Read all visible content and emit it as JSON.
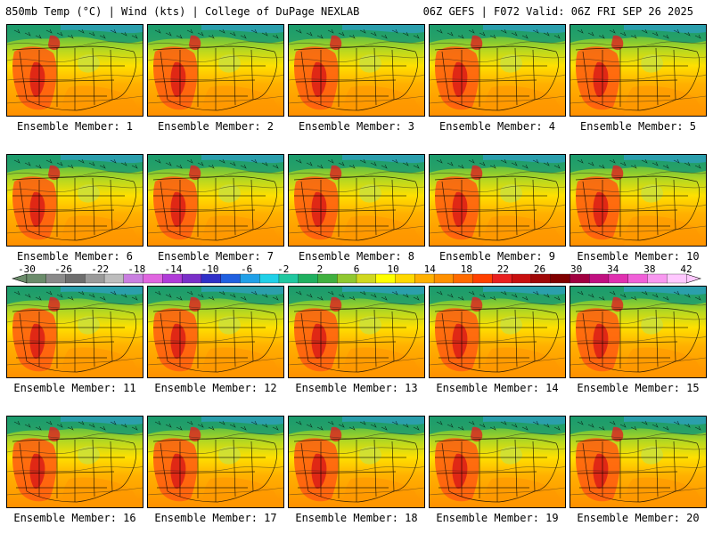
{
  "header": {
    "left_title": "850mb Temp (°C) | Wind (kts) | College of DuPage NEXLAB",
    "right_title": "06Z GEFS | F072 Valid: 06Z FRI SEP 26 2025"
  },
  "members": [
    {
      "label": "Ensemble Member: 1"
    },
    {
      "label": "Ensemble Member: 2"
    },
    {
      "label": "Ensemble Member: 3"
    },
    {
      "label": "Ensemble Member: 4"
    },
    {
      "label": "Ensemble Member: 5"
    },
    {
      "label": "Ensemble Member: 6"
    },
    {
      "label": "Ensemble Member: 7"
    },
    {
      "label": "Ensemble Member: 8"
    },
    {
      "label": "Ensemble Member: 9"
    },
    {
      "label": "Ensemble Member: 10"
    },
    {
      "label": "Ensemble Member: 11"
    },
    {
      "label": "Ensemble Member: 12"
    },
    {
      "label": "Ensemble Member: 13"
    },
    {
      "label": "Ensemble Member: 14"
    },
    {
      "label": "Ensemble Member: 15"
    },
    {
      "label": "Ensemble Member: 16"
    },
    {
      "label": "Ensemble Member: 17"
    },
    {
      "label": "Ensemble Member: 18"
    },
    {
      "label": "Ensemble Member: 19"
    },
    {
      "label": "Ensemble Member: 20"
    }
  ],
  "colorbar": {
    "ticks": [
      "-30",
      "-26",
      "-22",
      "-18",
      "-14",
      "-10",
      "-6",
      "-2",
      "2",
      "6",
      "10",
      "14",
      "18",
      "22",
      "26",
      "30",
      "34",
      "38",
      "42"
    ],
    "colors": [
      "#6b8c6b",
      "#8a8a8a",
      "#6e6e6e",
      "#9a9a9a",
      "#bdbdbd",
      "#c97fe0",
      "#e066e0",
      "#b03cd8",
      "#7a30c8",
      "#3030c8",
      "#2060e0",
      "#20a0e8",
      "#20d0e8",
      "#20c8a0",
      "#20b060",
      "#40b040",
      "#90c830",
      "#d0d820",
      "#ffff00",
      "#ffd800",
      "#ffb000",
      "#ff9000",
      "#ff6a00",
      "#ff4000",
      "#e82020",
      "#c81010",
      "#a00808",
      "#800000",
      "#a00040",
      "#c01080",
      "#e030b0",
      "#f060d8",
      "#f898f0",
      "#ffc8ff"
    ]
  }
}
